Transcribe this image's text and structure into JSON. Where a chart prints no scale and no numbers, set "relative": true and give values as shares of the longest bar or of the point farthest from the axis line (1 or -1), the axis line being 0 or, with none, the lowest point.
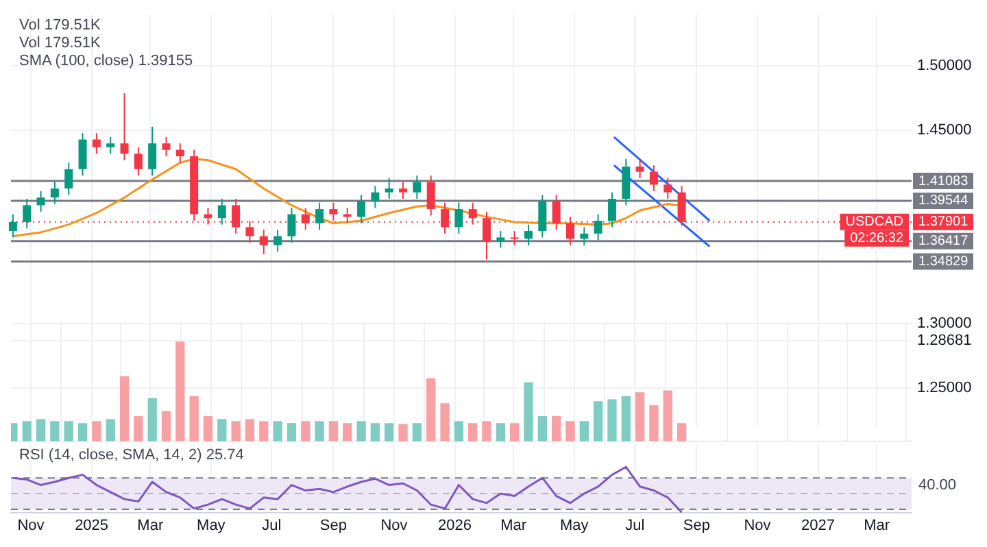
{
  "chart_data": [
    {
      "type": "candlestick",
      "annotations": [
        "Vol 179.51K",
        "Vol 179.51K",
        "SMA (100, close) 1.39155",
        {
          "text": "USDCAD",
          "y": 1.37901
        },
        {
          "text": "02:26:32",
          "y": 1.37901
        }
      ],
      "xlim": [
        "2024-10-12",
        "2027-04-05"
      ],
      "xticks": [
        {
          "value": "2024-11-01",
          "label": null
        },
        {
          "value": "2025-01-01",
          "label": null
        },
        {
          "value": "2025-03-01",
          "label": null
        },
        {
          "value": "2025-05-01",
          "label": null
        },
        {
          "value": "2025-07-01",
          "label": null
        },
        {
          "value": "2025-09-01",
          "label": null
        },
        {
          "value": "2025-11-01",
          "label": null
        },
        {
          "value": "2026-01-01",
          "label": null
        },
        {
          "value": "2026-03-01",
          "label": null
        },
        {
          "value": "2026-05-01",
          "label": null
        },
        {
          "value": "2026-07-01",
          "label": null
        },
        {
          "value": "2026-09-01",
          "label": null
        },
        {
          "value": "2026-11-01",
          "label": null
        },
        {
          "value": "2027-01-01",
          "label": null
        },
        {
          "value": "2027-03-01",
          "label": null
        }
      ],
      "ylim": [
        1.22,
        1.54
      ],
      "yticks": [
        {
          "value": 1.25,
          "label": "1.25000"
        },
        1.28681,
        {
          "value": 1.3,
          "label": "1.30000"
        },
        {
          "value": 1.45,
          "label": "1.45000"
        },
        {
          "value": 1.5,
          "label": "1.50000"
        }
      ],
      "tick_labels": "y",
      "grid": true,
      "ref_lines": [
        {
          "axis": "y",
          "value": 1.41083,
          "label": "1.41083",
          "color": "#787b86"
        },
        {
          "axis": "y",
          "value": 1.39544,
          "label": "1.39544",
          "color": "#787b86"
        },
        {
          "axis": "y",
          "value": 1.36417,
          "label": "1.36417",
          "color": "#787b86"
        },
        {
          "axis": "y",
          "value": 1.34829,
          "label": "1.34829",
          "color": "#787b86"
        },
        {
          "axis": "y",
          "value": 1.37901,
          "label": "1.37901",
          "color": "#f23645",
          "line_style": "dotted"
        }
      ],
      "series": [
        {
          "x": [
            "2024-10-14",
            "2024-10-28",
            "2024-11-11",
            "2024-11-25",
            "2024-12-09",
            "2024-12-23",
            "2025-01-06",
            "2025-01-20",
            "2025-02-03",
            "2025-02-17",
            "2025-03-03",
            "2025-03-17",
            "2025-03-31",
            "2025-04-14",
            "2025-04-28",
            "2025-05-12",
            "2025-05-26",
            "2025-06-09",
            "2025-06-23",
            "2025-07-07",
            "2025-07-21",
            "2025-08-04",
            "2025-08-18",
            "2025-09-01",
            "2025-09-15",
            "2025-09-29",
            "2025-10-13",
            "2025-10-27",
            "2025-11-10",
            "2025-11-24",
            "2025-12-08",
            "2025-12-22",
            "2026-01-05",
            "2026-01-19",
            "2026-02-02",
            "2026-02-16",
            "2026-03-02",
            "2026-03-16",
            "2026-03-30",
            "2026-04-13",
            "2026-04-27",
            "2026-05-11",
            "2026-05-25",
            "2026-06-08",
            "2026-06-22",
            "2026-07-06",
            "2026-07-20",
            "2026-08-03",
            "2026-08-17"
          ],
          "ohlc": [
            [
              1.372,
              1.385,
              1.367,
              1.379
            ],
            [
              1.379,
              1.397,
              1.374,
              1.392
            ],
            [
              1.392,
              1.403,
              1.387,
              1.398
            ],
            [
              1.398,
              1.41,
              1.393,
              1.405
            ],
            [
              1.405,
              1.425,
              1.4,
              1.42
            ],
            [
              1.42,
              1.448,
              1.415,
              1.443
            ],
            [
              1.443,
              1.448,
              1.432,
              1.437
            ],
            [
              1.437,
              1.445,
              1.432,
              1.44
            ],
            [
              1.44,
              1.479,
              1.427,
              1.432
            ],
            [
              1.432,
              1.437,
              1.415,
              1.42
            ],
            [
              1.42,
              1.453,
              1.415,
              1.44
            ],
            [
              1.44,
              1.445,
              1.43,
              1.435
            ],
            [
              1.435,
              1.44,
              1.425,
              1.43
            ],
            [
              1.43,
              1.435,
              1.38,
              1.385
            ],
            [
              1.385,
              1.39,
              1.377,
              1.382
            ],
            [
              1.382,
              1.397,
              1.377,
              1.392
            ],
            [
              1.392,
              1.397,
              1.37,
              1.375
            ],
            [
              1.375,
              1.38,
              1.363,
              1.368
            ],
            [
              1.368,
              1.373,
              1.354,
              1.361
            ],
            [
              1.361,
              1.373,
              1.356,
              1.368
            ],
            [
              1.368,
              1.39,
              1.363,
              1.385
            ],
            [
              1.385,
              1.39,
              1.373,
              1.378
            ],
            [
              1.378,
              1.394,
              1.373,
              1.389
            ],
            [
              1.389,
              1.394,
              1.38,
              1.385
            ],
            [
              1.385,
              1.39,
              1.378,
              1.383
            ],
            [
              1.383,
              1.4,
              1.378,
              1.395
            ],
            [
              1.395,
              1.407,
              1.39,
              1.402
            ],
            [
              1.402,
              1.413,
              1.397,
              1.405
            ],
            [
              1.405,
              1.41,
              1.397,
              1.402
            ],
            [
              1.402,
              1.415,
              1.397,
              1.41
            ],
            [
              1.41,
              1.415,
              1.384,
              1.389
            ],
            [
              1.389,
              1.394,
              1.37,
              1.375
            ],
            [
              1.375,
              1.394,
              1.37,
              1.389
            ],
            [
              1.389,
              1.394,
              1.377,
              1.382
            ],
            [
              1.382,
              1.387,
              1.35,
              1.364
            ],
            [
              1.364,
              1.372,
              1.359,
              1.367
            ],
            [
              1.367,
              1.372,
              1.361,
              1.366
            ],
            [
              1.366,
              1.377,
              1.361,
              1.372
            ],
            [
              1.372,
              1.4,
              1.367,
              1.395
            ],
            [
              1.395,
              1.4,
              1.373,
              1.378
            ],
            [
              1.378,
              1.383,
              1.361,
              1.366
            ],
            [
              1.366,
              1.375,
              1.361,
              1.37
            ],
            [
              1.37,
              1.385,
              1.365,
              1.38
            ],
            [
              1.38,
              1.402,
              1.375,
              1.397
            ],
            [
              1.397,
              1.428,
              1.392,
              1.422
            ],
            [
              1.422,
              1.427,
              1.413,
              1.418
            ],
            [
              1.418,
              1.423,
              1.403,
              1.408
            ],
            [
              1.408,
              1.413,
              1.397,
              1.402
            ],
            [
              1.402,
              1.407,
              1.376,
              1.37901
            ]
          ],
          "colors": [
            "#089981",
            "#089981",
            "#089981",
            "#089981",
            "#089981",
            "#089981",
            "#f23645",
            "#089981",
            "#f23645",
            "#f23645",
            "#089981",
            "#f23645",
            "#f23645",
            "#f23645",
            "#f23645",
            "#089981",
            "#f23645",
            "#f23645",
            "#f23645",
            "#089981",
            "#089981",
            "#f23645",
            "#089981",
            "#f23645",
            "#f23645",
            "#089981",
            "#089981",
            "#089981",
            "#f23645",
            "#089981",
            "#f23645",
            "#f23645",
            "#089981",
            "#f23645",
            "#f23645",
            "#089981",
            "#f23645",
            "#089981",
            "#089981",
            "#f23645",
            "#f23645",
            "#089981",
            "#089981",
            "#089981",
            "#089981",
            "#f23645",
            "#f23645",
            "#f23645",
            "#f23645"
          ]
        },
        {
          "type": "line",
          "color": "#f7931a",
          "x": [
            "2024-10-14",
            "2024-11-11",
            "2024-12-09",
            "2025-01-06",
            "2025-02-03",
            "2025-03-03",
            "2025-03-31",
            "2025-04-14",
            "2025-04-28",
            "2025-05-26",
            "2025-06-23",
            "2025-07-21",
            "2025-08-18",
            "2025-09-01",
            "2025-09-29",
            "2025-10-27",
            "2025-11-24",
            "2025-12-08",
            "2026-01-05",
            "2026-02-02",
            "2026-03-02",
            "2026-03-30",
            "2026-04-27",
            "2026-05-25",
            "2026-06-08",
            "2026-06-22",
            "2026-07-06",
            "2026-08-03",
            "2026-08-17"
          ],
          "values": [
            1.368,
            1.371,
            1.377,
            1.386,
            1.398,
            1.412,
            1.425,
            1.428,
            1.427,
            1.42,
            1.405,
            1.392,
            1.382,
            1.378,
            1.38,
            1.386,
            1.391,
            1.392,
            1.388,
            1.383,
            1.379,
            1.378,
            1.378,
            1.377,
            1.378,
            1.382,
            1.388,
            1.393,
            1.39155
          ]
        },
        {
          "type": "line",
          "color": "#2962ff",
          "x": [
            "2026-06-10",
            "2026-09-14"
          ],
          "values": [
            1.445,
            1.38
          ]
        },
        {
          "type": "line",
          "color": "#2962ff",
          "x": [
            "2026-06-10",
            "2026-09-14"
          ],
          "values": [
            1.423,
            1.36
          ]
        }
      ]
    },
    {
      "type": "bar",
      "relative": true,
      "tick_labels": false,
      "grid": "x",
      "xlim": [
        "2024-10-12",
        "2027-04-05"
      ],
      "xticks": [
        {
          "value": "2024-11-01",
          "label": null
        },
        {
          "value": "2025-01-01",
          "label": null
        },
        {
          "value": "2025-03-01",
          "label": null
        },
        {
          "value": "2025-05-01",
          "label": null
        },
        {
          "value": "2025-07-01",
          "label": null
        },
        {
          "value": "2025-09-01",
          "label": null
        },
        {
          "value": "2025-11-01",
          "label": null
        },
        {
          "value": "2026-01-01",
          "label": null
        },
        {
          "value": "2026-03-01",
          "label": null
        },
        {
          "value": "2026-05-01",
          "label": null
        },
        {
          "value": "2026-07-01",
          "label": null
        },
        {
          "value": "2026-09-01",
          "label": null
        },
        {
          "value": "2026-11-01",
          "label": null
        },
        {
          "value": "2027-01-01",
          "label": null
        },
        {
          "value": "2027-03-01",
          "label": null
        }
      ],
      "x": [
        "2024-10-14",
        "2024-10-28",
        "2024-11-11",
        "2024-11-25",
        "2024-12-09",
        "2024-12-23",
        "2025-01-06",
        "2025-01-20",
        "2025-02-03",
        "2025-02-17",
        "2025-03-03",
        "2025-03-17",
        "2025-03-31",
        "2025-04-14",
        "2025-04-28",
        "2025-05-12",
        "2025-05-26",
        "2025-06-09",
        "2025-06-23",
        "2025-07-07",
        "2025-07-21",
        "2025-08-04",
        "2025-08-18",
        "2025-09-01",
        "2025-09-15",
        "2025-09-29",
        "2025-10-13",
        "2025-10-27",
        "2025-11-10",
        "2025-11-24",
        "2025-12-08",
        "2025-12-22",
        "2026-01-05",
        "2026-01-19",
        "2026-02-02",
        "2026-02-16",
        "2026-03-02",
        "2026-03-16",
        "2026-03-30",
        "2026-04-13",
        "2026-04-27",
        "2026-05-11",
        "2026-05-25",
        "2026-06-08",
        "2026-06-22",
        "2026-07-06",
        "2026-07-20",
        "2026-08-03",
        "2026-08-17"
      ],
      "values": [
        0.18,
        0.2,
        0.22,
        0.2,
        0.2,
        0.18,
        0.2,
        0.22,
        0.65,
        0.25,
        0.43,
        0.3,
        1,
        0.45,
        0.25,
        0.22,
        0.2,
        0.22,
        0.2,
        0.2,
        0.18,
        0.2,
        0.2,
        0.2,
        0.18,
        0.2,
        0.18,
        0.18,
        0.17,
        0.18,
        0.63,
        0.38,
        0.2,
        0.18,
        0.2,
        0.18,
        0.18,
        0.59,
        0.25,
        0.25,
        0.2,
        0.2,
        0.4,
        0.42,
        0.45,
        0.49,
        0.36,
        0.51,
        0.18
      ],
      "colors": [
        "#7fccc3",
        "#7fccc3",
        "#7fccc3",
        "#7fccc3",
        "#7fccc3",
        "#7fccc3",
        "#f7a1a5",
        "#7fccc3",
        "#f7a1a5",
        "#f7a1a5",
        "#7fccc3",
        "#f7a1a5",
        "#f7a1a5",
        "#f7a1a5",
        "#f7a1a5",
        "#7fccc3",
        "#f7a1a5",
        "#f7a1a5",
        "#f7a1a5",
        "#7fccc3",
        "#7fccc3",
        "#f7a1a5",
        "#7fccc3",
        "#f7a1a5",
        "#f7a1a5",
        "#7fccc3",
        "#7fccc3",
        "#7fccc3",
        "#f7a1a5",
        "#7fccc3",
        "#f7a1a5",
        "#f7a1a5",
        "#7fccc3",
        "#f7a1a5",
        "#f7a1a5",
        "#7fccc3",
        "#f7a1a5",
        "#7fccc3",
        "#7fccc3",
        "#f7a1a5",
        "#f7a1a5",
        "#7fccc3",
        "#7fccc3",
        "#7fccc3",
        "#7fccc3",
        "#f7a1a5",
        "#f7a1a5",
        "#f7a1a5",
        "#f7a1a5"
      ]
    },
    {
      "type": "line",
      "relative": true,
      "tick_labels": "x",
      "grid": "x",
      "annotations": [
        "RSI (14, close, SMA, 14, 2) 25.74",
        "40.00"
      ],
      "xlim": [
        "2024-10-12",
        "2027-04-05"
      ],
      "xticks": [
        {
          "value": "2024-11-01",
          "label": "Nov"
        },
        {
          "value": "2025-01-01",
          "label": "2025"
        },
        {
          "value": "2025-03-01",
          "label": "Mar"
        },
        {
          "value": "2025-05-01",
          "label": "May"
        },
        {
          "value": "2025-07-01",
          "label": "Jul"
        },
        {
          "value": "2025-09-01",
          "label": "Sep"
        },
        {
          "value": "2025-11-01",
          "label": "Nov"
        },
        {
          "value": "2026-01-01",
          "label": "2026"
        },
        {
          "value": "2026-03-01",
          "label": "Mar"
        },
        {
          "value": "2026-05-01",
          "label": "May"
        },
        {
          "value": "2026-07-01",
          "label": "Jul"
        },
        {
          "value": "2026-09-01",
          "label": "Sep"
        },
        {
          "value": "2026-11-01",
          "label": "Nov"
        },
        {
          "value": "2027-01-01",
          "label": "2027"
        },
        {
          "value": "2027-03-01",
          "label": "Mar"
        }
      ],
      "bands": [
        {
          "axis": "y",
          "from": 0.069,
          "to": 0.759,
          "color": "#ede7f6"
        }
      ],
      "ref_lines": [
        {
          "axis": "y",
          "value": 0.759,
          "color": "#787b86",
          "line_style": "dashed"
        },
        {
          "axis": "y",
          "value": 0.414,
          "color": "#b2b5be",
          "line_style": "dashed"
        },
        {
          "axis": "y",
          "value": 0.069,
          "color": "#787b86",
          "line_style": "dashed"
        }
      ],
      "series": [
        {
          "color": "#7e57c2",
          "x": [
            "2024-10-14",
            "2024-10-28",
            "2024-11-11",
            "2024-11-25",
            "2024-12-09",
            "2024-12-23",
            "2025-01-06",
            "2025-01-20",
            "2025-02-03",
            "2025-02-17",
            "2025-03-03",
            "2025-03-17",
            "2025-03-31",
            "2025-04-14",
            "2025-04-28",
            "2025-05-12",
            "2025-05-26",
            "2025-06-09",
            "2025-06-23",
            "2025-07-07",
            "2025-07-21",
            "2025-08-04",
            "2025-08-18",
            "2025-09-01",
            "2025-09-15",
            "2025-09-29",
            "2025-10-13",
            "2025-10-27",
            "2025-11-10",
            "2025-11-24",
            "2025-12-08",
            "2025-12-22",
            "2026-01-05",
            "2026-01-19",
            "2026-02-02",
            "2026-02-16",
            "2026-03-02",
            "2026-03-16",
            "2026-03-30",
            "2026-04-13",
            "2026-04-27",
            "2026-05-11",
            "2026-05-25",
            "2026-06-08",
            "2026-06-22",
            "2026-07-06",
            "2026-07-20",
            "2026-08-03",
            "2026-08-17"
          ],
          "values": [
            0.759,
            0.724,
            0.603,
            0.672,
            0.759,
            0.828,
            0.603,
            0.448,
            0.293,
            0.241,
            0.672,
            0.448,
            0.328,
            0.086,
            0.172,
            0.293,
            0.172,
            0.086,
            0.328,
            0.293,
            0.603,
            0.483,
            0.517,
            0.448,
            0.569,
            0.672,
            0.741,
            0.603,
            0.638,
            0.483,
            0.172,
            0.086,
            0.603,
            0.293,
            0.207,
            0.414,
            0.362,
            0.569,
            0.759,
            0.362,
            0.207,
            0.414,
            0.569,
            0.828,
            1,
            0.569,
            0.483,
            0.328,
            0
          ]
        }
      ]
    }
  ]
}
